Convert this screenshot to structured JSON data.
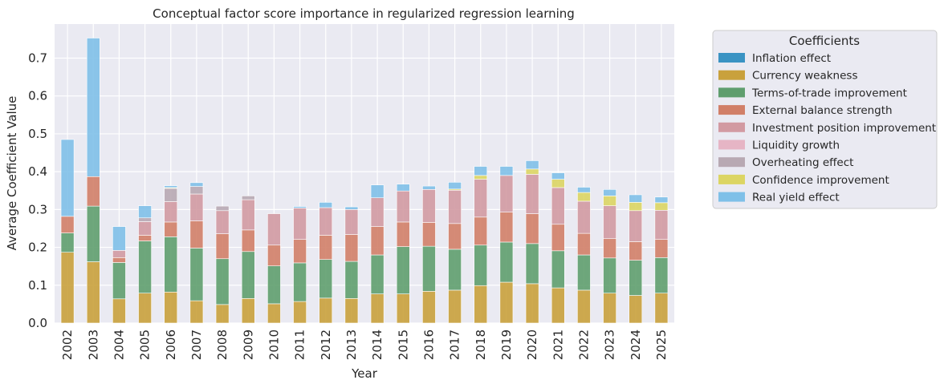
{
  "chart_data": {
    "type": "bar",
    "stacked": true,
    "title": "Conceptual factor score importance in regularized regression learning",
    "xlabel": "Year",
    "ylabel": "Average Coefficient Value",
    "ylim": [
      0,
      0.79
    ],
    "yticks": [
      "0.0",
      "0.1",
      "0.2",
      "0.3",
      "0.4",
      "0.5",
      "0.6",
      "0.7"
    ],
    "grid": true,
    "legend_title": "Coefficients",
    "legend_position": "outside-right",
    "categories": [
      "2002",
      "2003",
      "2004",
      "2005",
      "2006",
      "2007",
      "2008",
      "2009",
      "2010",
      "2011",
      "2012",
      "2013",
      "2014",
      "2015",
      "2016",
      "2017",
      "2018",
      "2019",
      "2020",
      "2021",
      "2022",
      "2023",
      "2024",
      "2025"
    ],
    "series": [
      {
        "name": "Inflation effect",
        "color": "#3a93c3",
        "values": [
          0,
          0,
          0,
          0,
          0,
          0,
          0,
          0,
          0,
          0,
          0,
          0,
          0,
          0,
          0,
          0,
          0,
          0,
          0,
          0,
          0,
          0,
          0,
          0
        ]
      },
      {
        "name": "Currency weakness",
        "color": "#c9a13c",
        "values": [
          0.187,
          0.162,
          0.064,
          0.079,
          0.082,
          0.059,
          0.049,
          0.065,
          0.051,
          0.057,
          0.066,
          0.065,
          0.077,
          0.077,
          0.084,
          0.087,
          0.099,
          0.108,
          0.104,
          0.093,
          0.087,
          0.079,
          0.073,
          0.079
        ]
      },
      {
        "name": "Terms-of-trade improvement",
        "color": "#5f9e6e",
        "values": [
          0.051,
          0.147,
          0.096,
          0.138,
          0.146,
          0.139,
          0.121,
          0.124,
          0.1,
          0.102,
          0.102,
          0.098,
          0.103,
          0.125,
          0.119,
          0.108,
          0.107,
          0.106,
          0.106,
          0.098,
          0.093,
          0.093,
          0.093,
          0.094
        ]
      },
      {
        "name": "External balance strength",
        "color": "#d17f68",
        "values": [
          0.044,
          0.078,
          0.013,
          0.015,
          0.039,
          0.072,
          0.066,
          0.057,
          0.055,
          0.062,
          0.064,
          0.071,
          0.075,
          0.065,
          0.063,
          0.068,
          0.074,
          0.079,
          0.079,
          0.07,
          0.057,
          0.051,
          0.049,
          0.048
        ]
      },
      {
        "name": "Investment position improvement",
        "color": "#d29aa2",
        "values": [
          0,
          0,
          0.019,
          0.036,
          0.054,
          0.071,
          0.061,
          0.08,
          0.083,
          0.083,
          0.073,
          0.066,
          0.076,
          0.082,
          0.087,
          0.088,
          0.1,
          0.097,
          0.104,
          0.097,
          0.085,
          0.087,
          0.082,
          0.077
        ]
      },
      {
        "name": "Liquidity growth",
        "color": "#e6b5c5",
        "values": [
          0,
          0,
          0,
          0,
          0,
          0,
          0,
          0,
          0,
          0,
          0,
          0,
          0,
          0,
          0,
          0,
          0,
          0,
          0,
          0,
          0,
          0,
          0,
          0
        ]
      },
      {
        "name": "Overheating effect",
        "color": "#b8a9b3",
        "values": [
          0,
          0,
          0,
          0.01,
          0.035,
          0.02,
          0.012,
          0.01,
          0,
          0,
          0,
          0,
          0,
          0,
          0,
          0,
          0,
          0,
          0,
          0,
          0,
          0,
          0,
          0
        ]
      },
      {
        "name": "Confidence improvement",
        "color": "#dcd563",
        "values": [
          0,
          0,
          0,
          0,
          0.002,
          0,
          0,
          0,
          0,
          0,
          0,
          0,
          0,
          0,
          0,
          0.003,
          0.01,
          0,
          0.014,
          0.022,
          0.023,
          0.026,
          0.022,
          0.02
        ]
      },
      {
        "name": "Real yield effect",
        "color": "#7fc0e8",
        "values": [
          0.203,
          0.366,
          0.063,
          0.032,
          0.005,
          0.01,
          0,
          0,
          0,
          0.004,
          0.014,
          0.007,
          0.034,
          0.018,
          0.009,
          0.018,
          0.024,
          0.024,
          0.022,
          0.017,
          0.014,
          0.017,
          0.02,
          0.015
        ]
      }
    ]
  }
}
